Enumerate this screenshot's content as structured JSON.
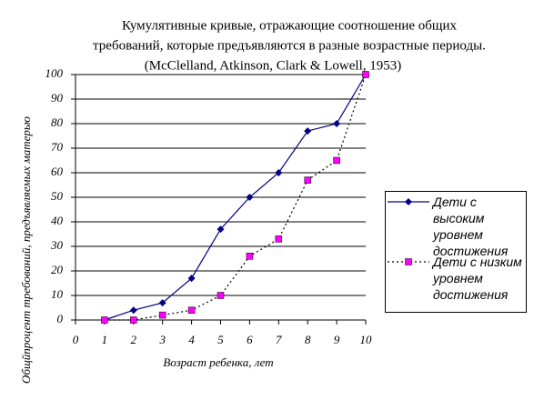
{
  "chart_data": {
    "type": "line",
    "title": [
      "Кумулятивные кривые, отражающие соотношение общих",
      "требований, которые предъявляются в разные возрастные периоды.",
      "(McClelland, Atkinson, Clark & Lowell, 1953)"
    ],
    "x_label": "Возраст ребенка, лет",
    "y_label": "Общйпроцент требований, предъявляемых матерью",
    "x": [
      1,
      2,
      3,
      4,
      5,
      6,
      7,
      8,
      9,
      10
    ],
    "series": [
      {
        "name": "Дети с высоким уровнем достижения",
        "color": "#000080",
        "marker_color": "#000080",
        "marker": "diamond",
        "dash": false,
        "values": [
          0,
          4,
          7,
          17,
          37,
          50,
          60,
          77,
          80,
          100
        ]
      },
      {
        "name": "Дети с низким уровнем достижения",
        "color": "#000000",
        "marker_color": "#ff00ff",
        "marker": "square",
        "dash": true,
        "values": [
          0,
          0,
          2,
          4,
          10,
          26,
          33,
          57,
          65,
          100
        ]
      }
    ],
    "xlim": [
      0,
      10
    ],
    "xticks": [
      0,
      1,
      2,
      3,
      4,
      5,
      6,
      7,
      8,
      9,
      10
    ],
    "ylim": [
      0,
      100
    ],
    "yticks": [
      0,
      10,
      20,
      30,
      40,
      50,
      60,
      70,
      80,
      90,
      100
    ],
    "grid": true,
    "legend": "right"
  }
}
